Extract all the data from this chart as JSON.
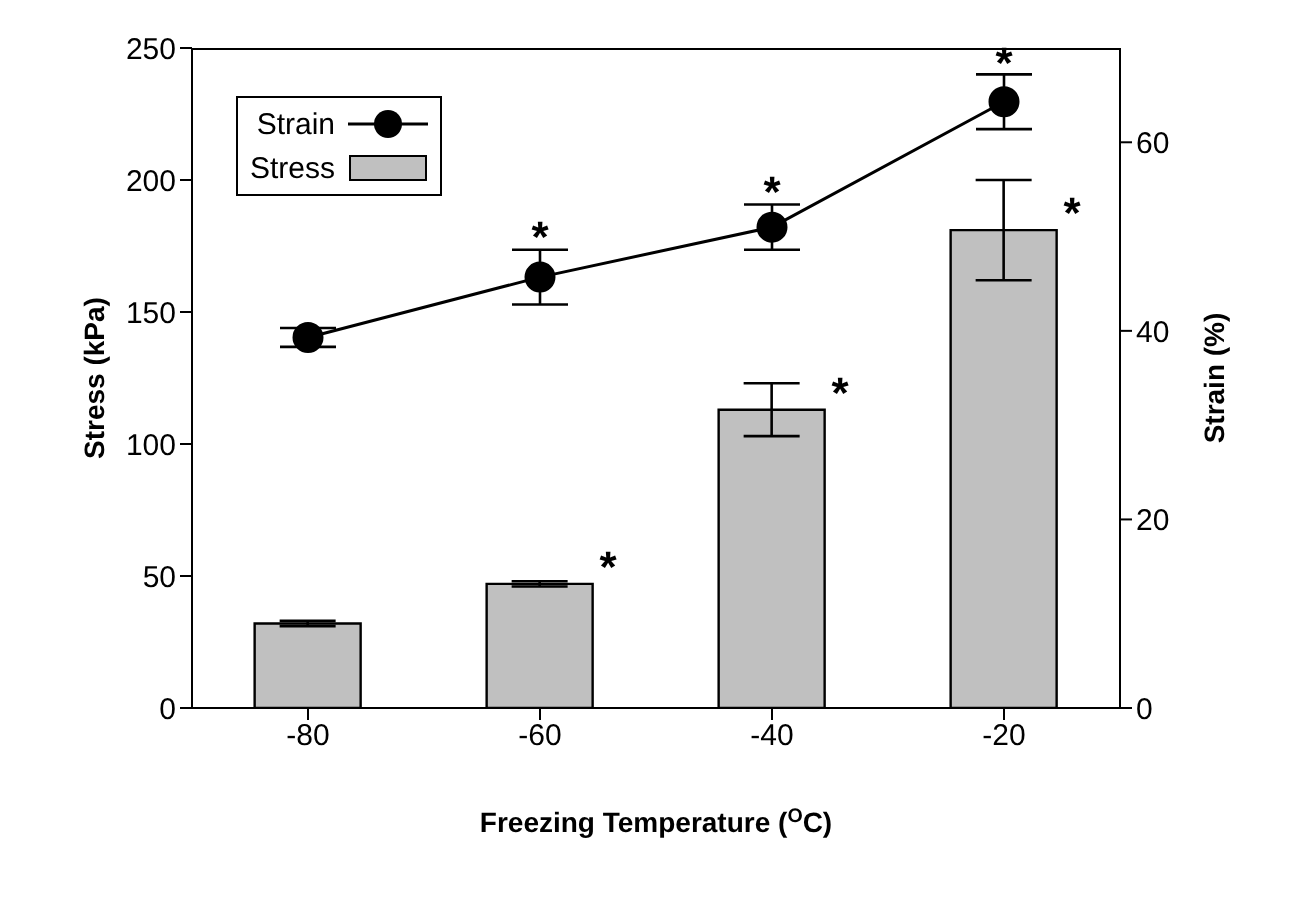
{
  "chart_data": {
    "type": "bar",
    "xlabel": "Freezing Temperature ($^{O}$C)",
    "ylabel": "Stress (kPa)",
    "y2label": "Strain (%)",
    "categories": [
      "-80",
      "-60",
      "-40",
      "-20"
    ],
    "series": [
      {
        "name": "Stress",
        "color": "#c0c0c0",
        "values": [
          32,
          47,
          113,
          181
        ],
        "errors": [
          1,
          1,
          10,
          19
        ]
      },
      {
        "name": "Strain",
        "type": "line",
        "axis": "y2",
        "color": "#000000",
        "values": [
          39.3,
          45.7,
          51,
          64.3
        ],
        "errors": [
          1,
          2.9,
          2.4,
          2.9
        ],
        "marker": "circle",
        "line_style": "solid"
      }
    ],
    "ylim": [
      0,
      250
    ],
    "yticks": [
      0,
      50,
      100,
      150,
      200,
      250
    ],
    "y2lim": [
      0,
      70
    ],
    "y2ticks": [
      0,
      20,
      40,
      60
    ],
    "grid": false,
    "legend": "top left",
    "annotations": [
      {
        "text": "*",
        "x": "-60",
        "y": 175
      },
      {
        "text": "*",
        "x": "-40",
        "y": 192
      },
      {
        "text": "*",
        "x": "-20",
        "y": 241
      },
      {
        "text": "*",
        "x": "-60",
        "y": 47
      },
      {
        "text": "*",
        "x": "-40",
        "y": 113
      },
      {
        "text": "*",
        "x": "-20",
        "y": 181
      }
    ]
  }
}
